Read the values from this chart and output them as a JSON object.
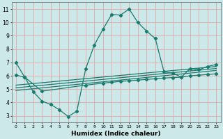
{
  "xlabel": "Humidex (Indice chaleur)",
  "bg_color": "#cce8e8",
  "grid_color": "#dda8a8",
  "line_color": "#1a7a6e",
  "xlim": [
    -0.5,
    23.5
  ],
  "ylim": [
    2.5,
    11.5
  ],
  "xticks": [
    0,
    1,
    2,
    3,
    4,
    5,
    6,
    7,
    8,
    9,
    10,
    11,
    12,
    13,
    14,
    15,
    16,
    17,
    18,
    19,
    20,
    21,
    22,
    23
  ],
  "yticks": [
    3,
    4,
    5,
    6,
    7,
    8,
    9,
    10,
    11
  ],
  "line1_x": [
    0,
    1,
    2,
    3,
    4,
    5,
    6,
    7,
    8,
    9,
    10,
    11,
    12,
    13,
    14,
    15,
    16,
    17,
    18,
    19,
    20,
    21,
    22,
    23
  ],
  "line1_y": [
    7.0,
    5.9,
    4.8,
    4.1,
    3.85,
    3.45,
    2.95,
    3.35,
    6.5,
    8.3,
    9.5,
    10.6,
    10.55,
    11.0,
    10.0,
    9.35,
    8.8,
    6.3,
    6.2,
    5.9,
    6.55,
    6.45,
    6.7,
    6.85
  ],
  "line2_x": [
    0,
    1,
    3,
    8,
    10,
    11,
    12,
    13,
    14,
    15,
    16,
    17,
    18,
    19,
    20,
    21,
    22,
    23
  ],
  "line2_y": [
    6.05,
    5.9,
    4.85,
    5.3,
    5.45,
    5.52,
    5.58,
    5.63,
    5.68,
    5.73,
    5.78,
    5.83,
    5.87,
    5.9,
    6.0,
    6.05,
    6.1,
    6.15
  ],
  "trend1_x": [
    0,
    23
  ],
  "trend1_y": [
    4.9,
    6.4
  ],
  "trend2_x": [
    0,
    23
  ],
  "trend2_y": [
    5.1,
    6.55
  ],
  "trend3_x": [
    0,
    23
  ],
  "trend3_y": [
    5.3,
    6.7
  ]
}
